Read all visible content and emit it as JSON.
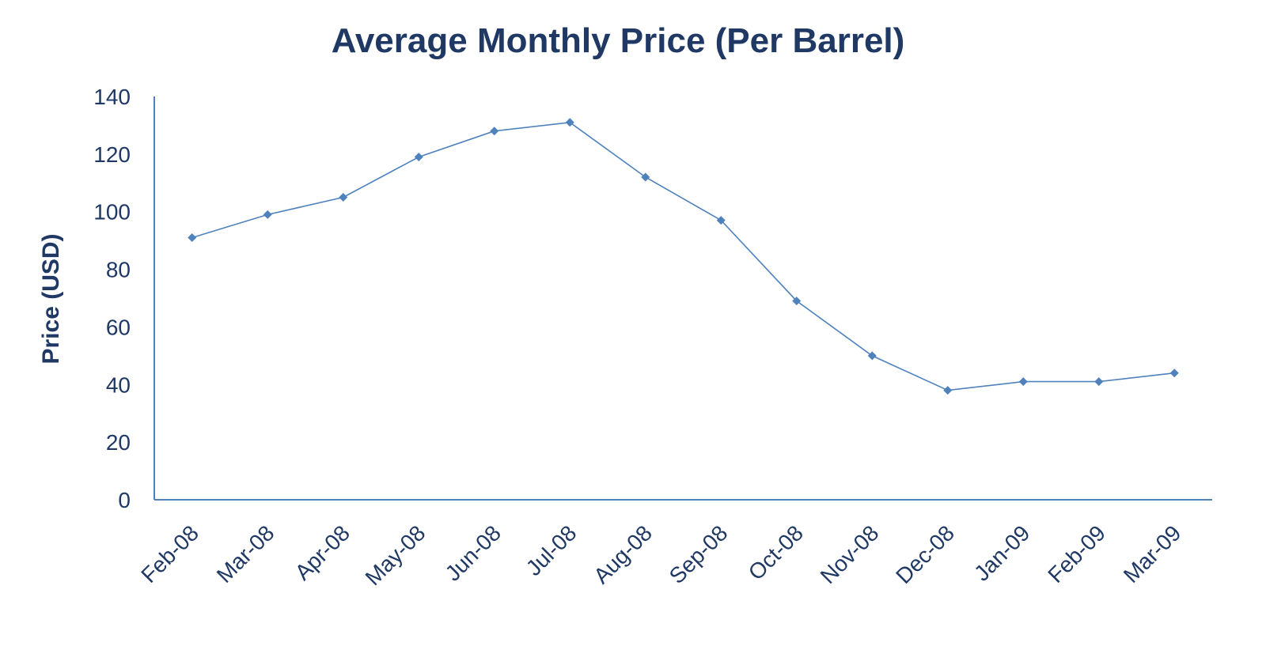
{
  "chart_data": {
    "type": "line",
    "title": "Average Monthly Price (Per Barrel)",
    "xlabel": "",
    "ylabel": "Price (USD)",
    "ylim": [
      0,
      140
    ],
    "yticks": [
      "0",
      "20",
      "40",
      "60",
      "80",
      "100",
      "120",
      "140"
    ],
    "grid": false,
    "categories": [
      "Feb-08",
      "Mar-08",
      "Apr-08",
      "May-08",
      "Jun-08",
      "Jul-08",
      "Aug-08",
      "Sep-08",
      "Oct-08",
      "Nov-08",
      "Dec-08",
      "Jan-09",
      "Feb-09",
      "Mar-09"
    ],
    "series": [
      {
        "name": "Average Monthly Price",
        "values": [
          91,
          99,
          105,
          119,
          128,
          131,
          112,
          97,
          69,
          50,
          38,
          41,
          41,
          44
        ]
      }
    ],
    "colors": {
      "line": "#4F81BD",
      "text": "#1F3864"
    }
  }
}
